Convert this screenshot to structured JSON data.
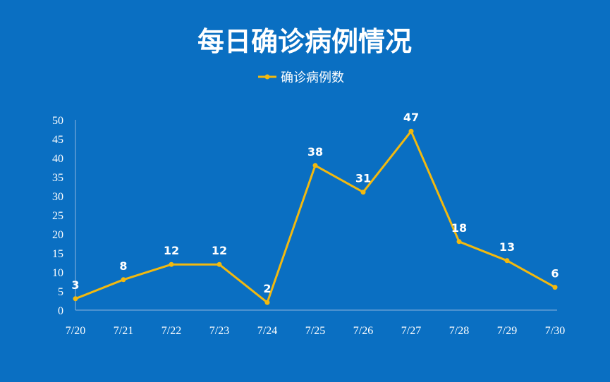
{
  "colors": {
    "background": "#0A6FC2",
    "line": "#F2B90F",
    "axis": "#8FB6DD",
    "text": "#FFFFFF"
  },
  "chart_data": {
    "type": "line",
    "title": "每日确诊病例情况",
    "legend_position": "top",
    "grid": false,
    "categories": [
      "7/20",
      "7/21",
      "7/22",
      "7/23",
      "7/24",
      "7/25",
      "7/26",
      "7/27",
      "7/28",
      "7/29",
      "7/30"
    ],
    "series": [
      {
        "name": "确诊病例数",
        "values": [
          3,
          8,
          12,
          12,
          2,
          38,
          31,
          47,
          18,
          13,
          6
        ]
      }
    ],
    "ylim": [
      0,
      50
    ],
    "yticks": [
      0,
      5,
      10,
      15,
      20,
      25,
      30,
      35,
      40,
      45,
      50
    ],
    "xlabel": "",
    "ylabel": ""
  }
}
